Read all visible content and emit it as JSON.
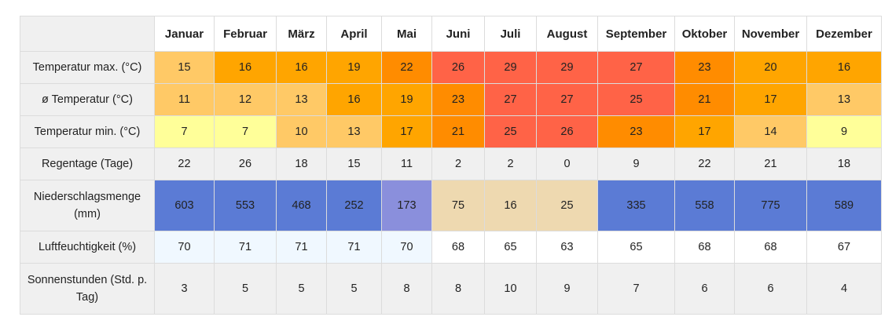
{
  "months": [
    "Januar",
    "Februar",
    "März",
    "April",
    "Mai",
    "Juni",
    "Juli",
    "August",
    "September",
    "Oktober",
    "November",
    "Dezember"
  ],
  "rows": [
    {
      "label": "Temperatur max. (°C)",
      "values": [
        "15",
        "16",
        "16",
        "19",
        "22",
        "26",
        "29",
        "29",
        "27",
        "23",
        "20",
        "16"
      ],
      "colors": [
        "#ffc966",
        "#ffa500",
        "#ffa500",
        "#ffa500",
        "#ff8c00",
        "#ff6347",
        "#ff6347",
        "#ff6347",
        "#ff6347",
        "#ff8c00",
        "#ffa500",
        "#ffa500"
      ]
    },
    {
      "label": "ø Temperatur (°C)",
      "values": [
        "11",
        "12",
        "13",
        "16",
        "19",
        "23",
        "27",
        "27",
        "25",
        "21",
        "17",
        "13"
      ],
      "colors": [
        "#ffc966",
        "#ffc966",
        "#ffc966",
        "#ffa500",
        "#ffa500",
        "#ff8c00",
        "#ff6347",
        "#ff6347",
        "#ff6347",
        "#ff8c00",
        "#ffa500",
        "#ffc966"
      ]
    },
    {
      "label": "Temperatur min. (°C)",
      "values": [
        "7",
        "7",
        "10",
        "13",
        "17",
        "21",
        "25",
        "26",
        "23",
        "17",
        "14",
        "9"
      ],
      "colors": [
        "#ffff99",
        "#ffff99",
        "#ffc966",
        "#ffc966",
        "#ffa500",
        "#ff8c00",
        "#ff6347",
        "#ff6347",
        "#ff8c00",
        "#ffa500",
        "#ffc966",
        "#ffff99"
      ]
    },
    {
      "label": "Regentage (Tage)",
      "values": [
        "22",
        "26",
        "18",
        "15",
        "11",
        "2",
        "2",
        "0",
        "9",
        "22",
        "21",
        "18"
      ],
      "colors": [
        "#f0f0f0",
        "#f0f0f0",
        "#f0f0f0",
        "#f0f0f0",
        "#f0f0f0",
        "#f0f0f0",
        "#f0f0f0",
        "#f0f0f0",
        "#f0f0f0",
        "#f0f0f0",
        "#f0f0f0",
        "#f0f0f0"
      ]
    },
    {
      "label": "Niederschlagsmenge (mm)",
      "values": [
        "603",
        "553",
        "468",
        "252",
        "173",
        "75",
        "16",
        "25",
        "335",
        "558",
        "775",
        "589"
      ],
      "colors": [
        "#5b7bd5",
        "#5b7bd5",
        "#5b7bd5",
        "#5b7bd5",
        "#8a8fdc",
        "#eed9b0",
        "#eed9b0",
        "#eed9b0",
        "#5b7bd5",
        "#5b7bd5",
        "#5b7bd5",
        "#5b7bd5"
      ]
    },
    {
      "label": "Luftfeuchtigkeit (%)",
      "values": [
        "70",
        "71",
        "71",
        "71",
        "70",
        "68",
        "65",
        "63",
        "65",
        "68",
        "68",
        "67"
      ],
      "colors": [
        "#f0f8ff",
        "#f0f8ff",
        "#f0f8ff",
        "#f0f8ff",
        "#f0f8ff",
        "#ffffff",
        "#ffffff",
        "#ffffff",
        "#ffffff",
        "#ffffff",
        "#ffffff",
        "#ffffff"
      ]
    },
    {
      "label": "Sonnenstunden (Std. p. Tag)",
      "values": [
        "3",
        "5",
        "5",
        "5",
        "8",
        "8",
        "10",
        "9",
        "7",
        "6",
        "6",
        "4"
      ],
      "colors": [
        "#f0f0f0",
        "#f0f0f0",
        "#f0f0f0",
        "#f0f0f0",
        "#f0f0f0",
        "#f0f0f0",
        "#f0f0f0",
        "#f0f0f0",
        "#f0f0f0",
        "#f0f0f0",
        "#f0f0f0",
        "#f0f0f0"
      ]
    }
  ]
}
